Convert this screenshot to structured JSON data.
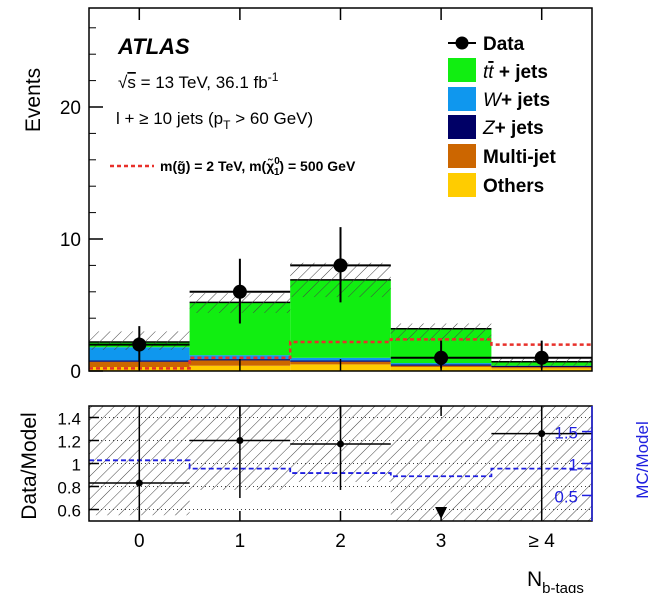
{
  "chart_data": {
    "type": "bar",
    "stacked": true,
    "categories": [
      "0",
      "1",
      "2",
      "3",
      "≥ 4"
    ],
    "xlabel": "N",
    "xlabel_sub": "b-tags",
    "ylabel": "Events",
    "ylim": [
      0,
      27.5
    ],
    "yticks": [
      0,
      10,
      20
    ],
    "atlas_label": "ATLAS",
    "info_lines": {
      "energy_pre": "√",
      "energy_s": "s",
      "energy_rest": " = 13 TeV, 36.1 fb",
      "energy_exp": "-1",
      "selection_pre": "l + ≥ 10 jets (p",
      "selection_sub": "T",
      "selection_post": " > 60 GeV)"
    },
    "signal": {
      "label_a": "m(",
      "label_g": "g̃",
      "label_b": ") = 2 TeV, m(",
      "label_chi": "χ̃",
      "label_chi_sup": "0",
      "label_chi_sub": "1",
      "label_c": ") = 500 GeV",
      "color": "#e8302a",
      "values": [
        0.2,
        1.0,
        2.2,
        2.4,
        2.0
      ]
    },
    "series": [
      {
        "name": "Others",
        "color": "#ffcc00",
        "values": [
          0.3,
          0.4,
          0.5,
          0.3,
          0.2
        ]
      },
      {
        "name": "Multi-jet",
        "color": "#cc6600",
        "values": [
          0.4,
          0.4,
          0.2,
          0.1,
          0.1
        ]
      },
      {
        "name": "Z+ jets",
        "color": "#000066",
        "values": [
          0.1,
          0.1,
          0.1,
          0.1,
          0.1
        ]
      },
      {
        "name": "W+ jets",
        "color": "#0f97ee",
        "values": [
          1.0,
          0.3,
          0.2,
          0.1,
          0.0
        ]
      },
      {
        "name": "t t̄ + jets",
        "color": "#11ee11",
        "values": [
          0.4,
          4.0,
          5.9,
          2.6,
          0.3
        ]
      }
    ],
    "uncertainty_band": {
      "low": [
        1.6,
        4.4,
        5.6,
        2.3,
        0.4
      ],
      "high": [
        3.0,
        5.9,
        8.2,
        3.6,
        1.0
      ]
    },
    "data_points": {
      "name": "Data",
      "values": [
        2,
        6,
        8,
        1,
        1
      ],
      "err_low": [
        1.3,
        2.4,
        2.8,
        0.8,
        0.8
      ],
      "err_high": [
        1.4,
        2.5,
        2.9,
        1.3,
        1.3
      ]
    },
    "legend": {
      "data": "Data",
      "ttbar_t": "t",
      "ttbar_tbar": "t",
      "ttbar_rest": " + jets",
      "w_letter": "W",
      "w_rest": "+ jets",
      "z_letter": "Z",
      "z_rest": "+ jets",
      "multijet": "Multi-jet",
      "others": "Others"
    },
    "ratio": {
      "ylabel": "Data/Model",
      "ylim": [
        0.5,
        1.5
      ],
      "yticks": [
        0.6,
        0.8,
        1,
        1.2,
        1.4
      ],
      "ytick_labels": [
        "0.6",
        "0.8",
        "1",
        "1.2",
        "1.4"
      ],
      "values": [
        0.83,
        1.2,
        1.17,
        null,
        1.26
      ],
      "err_low": [
        0.55,
        0.5,
        0.4,
        null,
        0.7
      ],
      "err_high": [
        0.6,
        0.5,
        0.4,
        null,
        0.7
      ],
      "band_low": [
        0.55,
        0.77,
        0.84,
        0.5,
        0.5
      ],
      "band_high": [
        1.5,
        1.5,
        1.5,
        1.5,
        1.5
      ],
      "offscale_marker": {
        "bin": 3,
        "direction": "down"
      },
      "mc_ylabel": "MC/Model",
      "mc_yticks": [
        0.5,
        1,
        1.5
      ],
      "mc_ytick_labels": [
        "0.5",
        "1",
        "1.5"
      ],
      "mc_ylim": [
        0.1,
        1.9
      ],
      "mc_values": [
        1.05,
        0.92,
        0.85,
        0.8,
        0.92
      ],
      "mc_color": "#1f1fdf"
    }
  }
}
